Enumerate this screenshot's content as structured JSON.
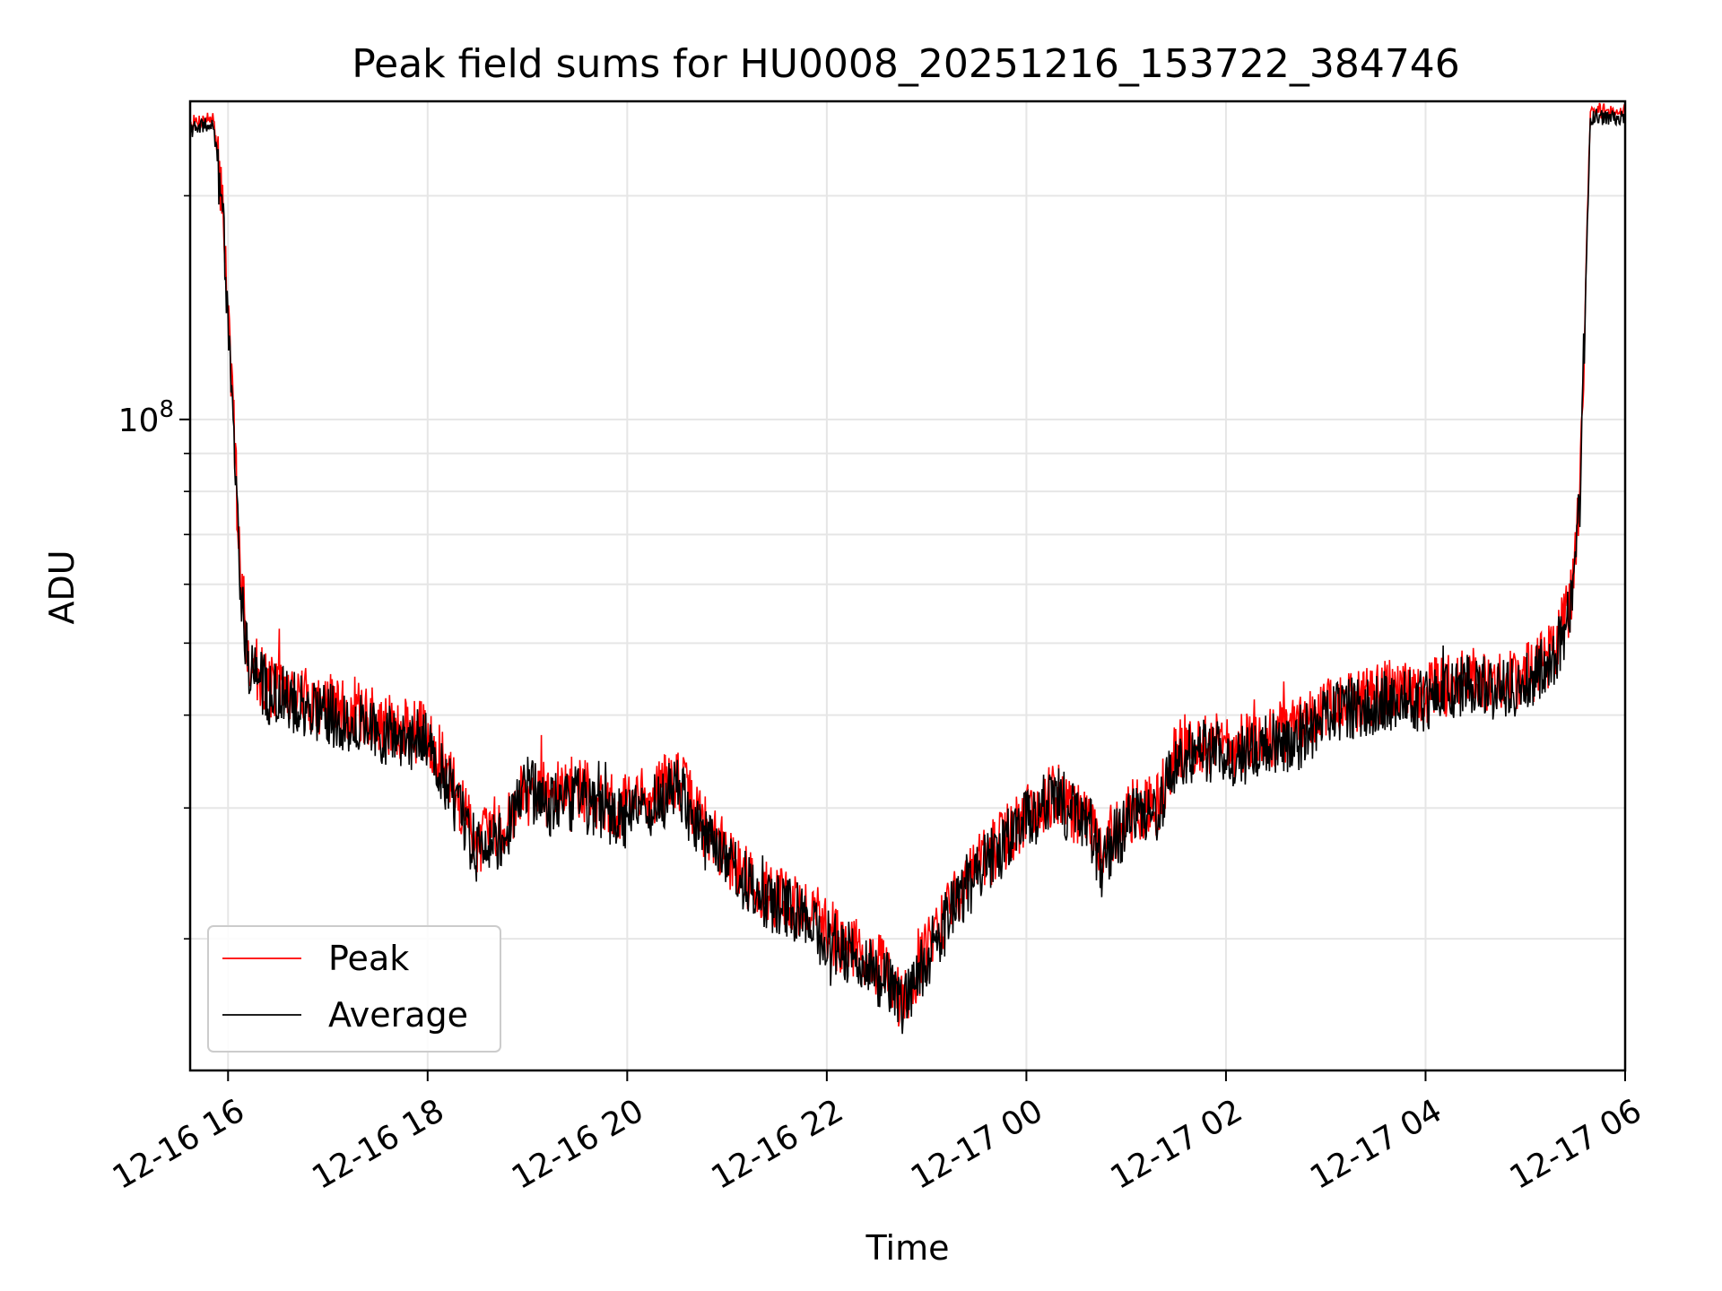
{
  "chart_data": {
    "type": "line",
    "title": "Peak field sums for HU0008_20251216_153722_384746",
    "xlabel": "Time",
    "ylabel": "ADU",
    "yscale": "log",
    "ylim": [
      13300000,
      268000000
    ],
    "xlim": [
      15.62,
      30.0
    ],
    "x_unit": "hours since 12-16 00:00",
    "grid": true,
    "legend_position": "lower-left",
    "y_major_ticks": [
      {
        "value": 100000000,
        "label": "10^8"
      }
    ],
    "y_minor_ticks": [
      20000000,
      30000000,
      40000000,
      50000000,
      60000000,
      70000000,
      80000000,
      90000000,
      200000000
    ],
    "x_ticks": [
      {
        "value": 16,
        "label": "12-16 16"
      },
      {
        "value": 18,
        "label": "12-16 18"
      },
      {
        "value": 20,
        "label": "12-16 20"
      },
      {
        "value": 22,
        "label": "12-16 22"
      },
      {
        "value": 24,
        "label": "12-17 00"
      },
      {
        "value": 26,
        "label": "12-17 02"
      },
      {
        "value": 28,
        "label": "12-17 04"
      },
      {
        "value": 30,
        "label": "12-17 06"
      }
    ],
    "series": [
      {
        "name": "Peak",
        "color": "#ff0000"
      },
      {
        "name": "Average",
        "color": "#000000"
      }
    ],
    "x": [
      15.62,
      15.85,
      15.95,
      16.05,
      16.12,
      16.2,
      16.4,
      16.8,
      17.3,
      17.8,
      18.0,
      18.3,
      18.5,
      18.8,
      19.0,
      19.2,
      19.5,
      19.9,
      20.2,
      20.5,
      20.8,
      21.0,
      21.3,
      21.6,
      21.9,
      22.1,
      22.4,
      22.6,
      22.75,
      22.9,
      23.1,
      23.4,
      23.7,
      24.0,
      24.3,
      24.5,
      24.65,
      24.75,
      24.9,
      25.1,
      25.3,
      25.5,
      25.8,
      26.1,
      26.4,
      26.7,
      27.0,
      27.3,
      27.6,
      28.0,
      28.4,
      28.8,
      29.1,
      29.3,
      29.45,
      29.55,
      29.65,
      30.0
    ],
    "values_avg": [
      245000000,
      250000000,
      190000000,
      100000000,
      62000000,
      47000000,
      43000000,
      41000000,
      39000000,
      37000000,
      37000000,
      30000000,
      26000000,
      28000000,
      32000000,
      30000000,
      31000000,
      29000000,
      30000000,
      32000000,
      27000000,
      25000000,
      23000000,
      22000000,
      21000000,
      19500000,
      18500000,
      17500000,
      16000000,
      17500000,
      20000000,
      23500000,
      26000000,
      29000000,
      31000000,
      29000000,
      28000000,
      25000000,
      27500000,
      29500000,
      29500000,
      35000000,
      36000000,
      35000000,
      36500000,
      37000000,
      39500000,
      41000000,
      42000000,
      42000000,
      44000000,
      43000000,
      45000000,
      48000000,
      55000000,
      80000000,
      255000000,
      256000000
    ],
    "values_peak": [
      250000000,
      255000000,
      194000000,
      102000000,
      63500000,
      48000000,
      44000000,
      42000000,
      40000000,
      38000000,
      38000000,
      31000000,
      27000000,
      29000000,
      33000000,
      31000000,
      32000000,
      30000000,
      31000000,
      33000000,
      28000000,
      26000000,
      23500000,
      22500000,
      21500000,
      20000000,
      19000000,
      18000000,
      16500000,
      18000000,
      20500000,
      24000000,
      26500000,
      29500000,
      31500000,
      29500000,
      28500000,
      25500000,
      28000000,
      30000000,
      30000000,
      36000000,
      37000000,
      36000000,
      37500000,
      38000000,
      40500000,
      42000000,
      43000000,
      43000000,
      45000000,
      44000000,
      46000000,
      49000000,
      56500000,
      82000000,
      260000000,
      261000000
    ]
  }
}
